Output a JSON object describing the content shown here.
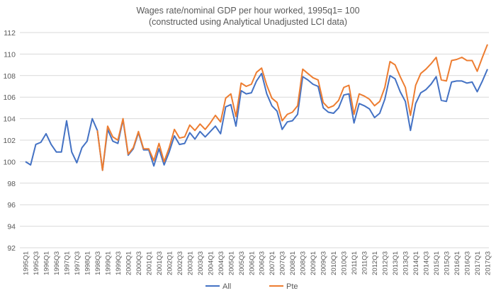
{
  "chart_data": {
    "type": "line",
    "title": "Wages rate/nominal GDP per hour worked, 1995q1= 100",
    "subtitle": "(constructed using Analytical Unadjusted LCI data)",
    "xlabel": "",
    "ylabel": "",
    "ylim": [
      92,
      112
    ],
    "yticks": [
      92,
      94,
      96,
      98,
      100,
      102,
      104,
      106,
      108,
      110,
      112
    ],
    "grid": true,
    "legend_position": "bottom",
    "x": [
      "1995Q1",
      "1995Q2",
      "1995Q3",
      "1995Q4",
      "1996Q1",
      "1996Q2",
      "1996Q3",
      "1996Q4",
      "1997Q1",
      "1997Q2",
      "1997Q3",
      "1997Q4",
      "1998Q1",
      "1998Q2",
      "1998Q3",
      "1998Q4",
      "1999Q1",
      "1999Q2",
      "1999Q3",
      "1999Q4",
      "2000Q1",
      "2000Q2",
      "2000Q3",
      "2000Q4",
      "2001Q1",
      "2001Q2",
      "2001Q3",
      "2001Q4",
      "2002Q1",
      "2002Q2",
      "2002Q3",
      "2002Q4",
      "2003Q1",
      "2003Q2",
      "2003Q3",
      "2003Q4",
      "2004Q1",
      "2004Q2",
      "2004Q3",
      "2004Q4",
      "2005Q1",
      "2005Q2",
      "2005Q3",
      "2005Q4",
      "2006Q1",
      "2006Q2",
      "2006Q3",
      "2006Q4",
      "2007Q1",
      "2007Q2",
      "2007Q3",
      "2007Q4",
      "2008Q1",
      "2008Q2",
      "2008Q3",
      "2008Q4",
      "2009Q1",
      "2009Q2",
      "2009Q3",
      "2009Q4",
      "2010Q1",
      "2010Q2",
      "2010Q3",
      "2010Q4",
      "2011Q1",
      "2011Q2",
      "2011Q3",
      "2011Q4",
      "2012Q1",
      "2012Q2",
      "2012Q3",
      "2012Q4",
      "2013Q1",
      "2013Q2",
      "2013Q3",
      "2013Q4",
      "2014Q1",
      "2014Q2",
      "2014Q3",
      "2014Q4",
      "2015Q1",
      "2015Q2",
      "2015Q3",
      "2015Q4",
      "2016Q1",
      "2016Q2",
      "2016Q3",
      "2016Q4",
      "2017Q1",
      "2017Q2",
      "2017Q3"
    ],
    "series": [
      {
        "name": "All",
        "color": "#4472C4",
        "values": [
          100.0,
          99.7,
          101.6,
          101.8,
          102.6,
          101.6,
          100.9,
          100.9,
          103.8,
          100.9,
          99.9,
          101.3,
          101.9,
          104.0,
          102.9,
          99.2,
          103.0,
          101.9,
          101.7,
          103.9,
          100.6,
          101.2,
          102.7,
          101.1,
          101.1,
          99.6,
          101.2,
          99.7,
          100.9,
          102.4,
          101.6,
          101.7,
          102.7,
          102.1,
          102.8,
          102.3,
          102.8,
          103.3,
          102.6,
          105.1,
          105.3,
          103.3,
          106.6,
          106.3,
          106.4,
          107.5,
          108.2,
          106.3,
          105.2,
          104.7,
          103.0,
          103.7,
          103.8,
          104.4,
          107.9,
          107.6,
          107.2,
          107.0,
          105.0,
          104.6,
          104.5,
          105.0,
          106.2,
          106.3,
          103.6,
          105.4,
          105.2,
          104.9,
          104.1,
          104.5,
          105.8,
          108.0,
          107.7,
          106.5,
          105.6,
          102.9,
          105.4,
          106.4,
          106.7,
          107.2,
          107.9,
          105.7,
          105.6,
          107.4,
          107.5,
          107.5,
          107.3,
          107.4,
          106.5,
          107.5,
          108.6
        ]
      },
      {
        "name": "Pte",
        "color": "#ED7D31",
        "values": [
          null,
          null,
          null,
          null,
          null,
          null,
          null,
          null,
          null,
          null,
          null,
          null,
          null,
          null,
          102.9,
          99.2,
          103.3,
          102.3,
          102.0,
          104.0,
          100.7,
          101.3,
          102.8,
          101.2,
          101.2,
          100.1,
          101.7,
          100.0,
          101.3,
          103.0,
          102.2,
          102.3,
          103.4,
          102.9,
          103.5,
          103.0,
          103.6,
          104.3,
          103.7,
          105.9,
          106.3,
          104.2,
          107.3,
          107.0,
          107.2,
          108.3,
          108.7,
          107.1,
          105.9,
          105.5,
          103.8,
          104.4,
          104.6,
          105.2,
          108.6,
          108.2,
          107.8,
          107.6,
          105.5,
          105.0,
          105.2,
          105.7,
          106.9,
          107.1,
          104.4,
          106.3,
          106.1,
          105.8,
          105.2,
          105.6,
          106.9,
          109.3,
          109.0,
          107.9,
          106.9,
          104.3,
          107.1,
          108.2,
          108.6,
          109.1,
          109.7,
          107.6,
          107.5,
          109.4,
          109.5,
          109.7,
          109.4,
          109.4,
          108.4,
          109.7,
          110.9
        ]
      }
    ]
  }
}
